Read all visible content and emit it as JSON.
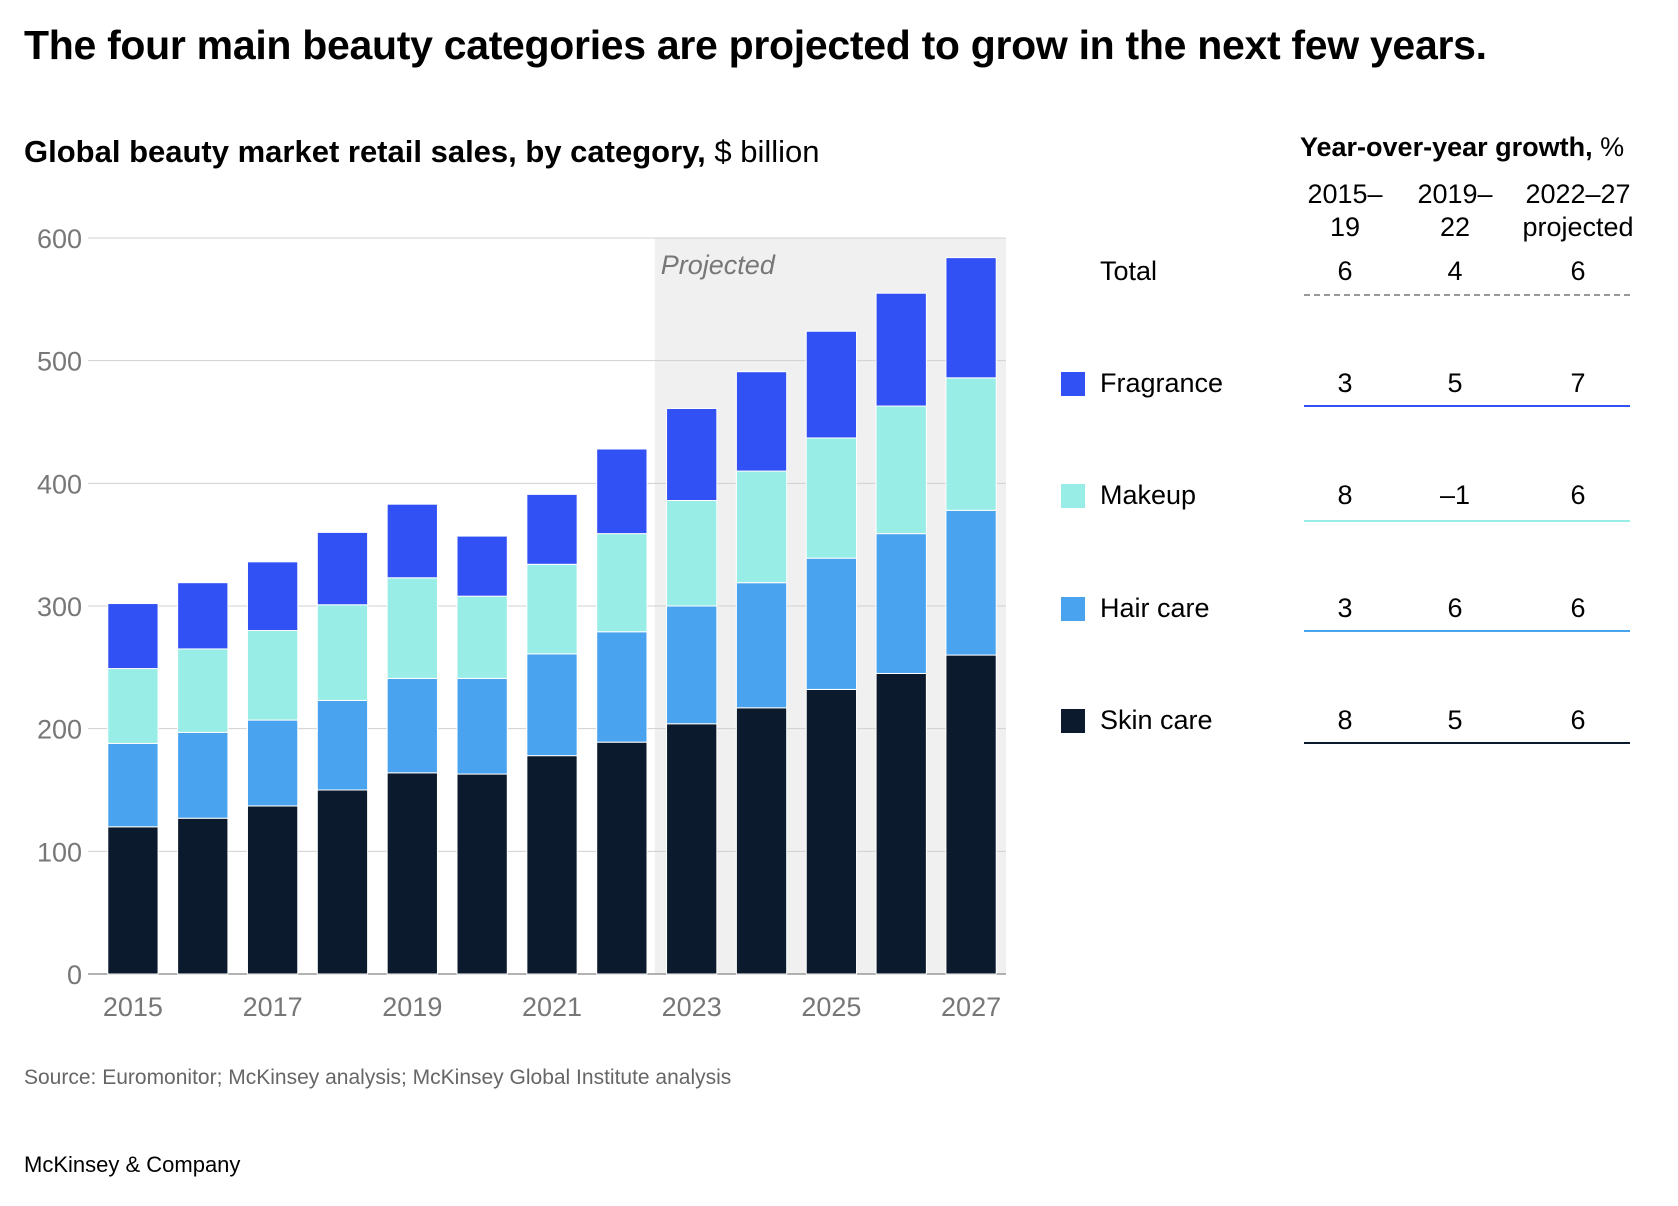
{
  "title": "The four main beauty categories are projected to grow in the next few years.",
  "subtitle": {
    "bold": "Global beauty market retail sales, by category,",
    "unit": "$ billion"
  },
  "chart_data": {
    "type": "bar",
    "stacked": true,
    "categories": [
      "2015",
      "2016",
      "2017",
      "2018",
      "2019",
      "2020",
      "2021",
      "2022",
      "2023",
      "2024",
      "2025",
      "2026",
      "2027"
    ],
    "x_tick_labels": [
      "2015",
      "2017",
      "2019",
      "2021",
      "2023",
      "2025",
      "2027"
    ],
    "y_ticks": [
      0,
      100,
      200,
      300,
      400,
      500,
      600
    ],
    "ylim": [
      0,
      600
    ],
    "grid": true,
    "projected_from": "2023",
    "projected_label": "Projected",
    "series": [
      {
        "name": "Skin care",
        "color": "#0b1a2c",
        "values": [
          120,
          127,
          137,
          150,
          164,
          163,
          178,
          189,
          204,
          217,
          232,
          245,
          260
        ]
      },
      {
        "name": "Hair care",
        "color": "#4aa3ef",
        "values": [
          68,
          70,
          70,
          73,
          77,
          78,
          83,
          90,
          96,
          102,
          107,
          114,
          118
        ]
      },
      {
        "name": "Makeup",
        "color": "#98ede6",
        "values": [
          61,
          68,
          73,
          78,
          82,
          67,
          73,
          80,
          86,
          91,
          98,
          104,
          108
        ]
      },
      {
        "name": "Fragrance",
        "color": "#3251f5",
        "values": [
          53,
          54,
          56,
          59,
          60,
          49,
          57,
          69,
          75,
          81,
          87,
          92,
          98
        ]
      }
    ]
  },
  "growth_table": {
    "title_bold": "Year-over-year growth,",
    "title_unit": "%",
    "columns": [
      {
        "line1": "2015–",
        "line2": "19"
      },
      {
        "line1": "2019–",
        "line2": "22"
      },
      {
        "line1": "2022–27",
        "line2": "projected"
      }
    ],
    "rows": [
      {
        "label": "Total",
        "values": [
          "6",
          "4",
          "6"
        ],
        "color": "#999999",
        "dashed": true
      },
      {
        "label": "Fragrance",
        "values": [
          "3",
          "5",
          "7"
        ],
        "color": "#3251f5"
      },
      {
        "label": "Makeup",
        "values": [
          "8",
          "–1",
          "6"
        ],
        "color": "#98ede6"
      },
      {
        "label": "Hair care",
        "values": [
          "3",
          "6",
          "6"
        ],
        "color": "#4aa3ef"
      },
      {
        "label": "Skin care",
        "values": [
          "8",
          "5",
          "6"
        ],
        "color": "#0b1a2c"
      }
    ]
  },
  "source": "Source: Euromonitor; McKinsey analysis; McKinsey Global Institute analysis",
  "brand": "McKinsey & Company"
}
